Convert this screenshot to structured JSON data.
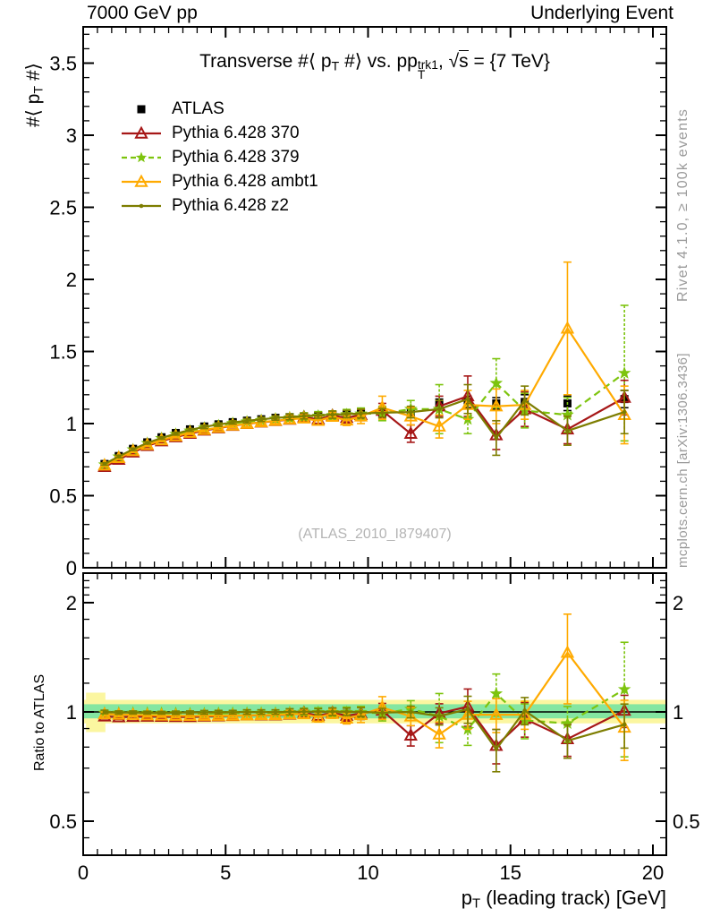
{
  "header": {
    "left": "7000 GeV pp",
    "right": "Underlying Event"
  },
  "side_notes": {
    "rivet": "Rivet 4.1.0, ≥ 100k events",
    "mcplots": "mcplots.cern.ch [arXiv:1306.3436]"
  },
  "watermark": "(ATLAS_2010_I879407)",
  "ratio_label": "Ratio to ATLAS",
  "chart_data": {
    "type": "line",
    "title_rich": [
      {
        "t": "Transverse #⟨ p"
      },
      {
        "t": "T",
        "m": "sub"
      },
      {
        "t": " #⟩ vs. p"
      },
      {
        "m": "stack",
        "sup": "trk1",
        "sub": "T",
        "t": "p"
      },
      {
        "t": ", "
      },
      {
        "t": "√"
      },
      {
        "t": "s",
        "m": "ov"
      },
      {
        "t": " = {7 TeV}"
      }
    ],
    "ylabel_rich": [
      {
        "t": "#⟨ p"
      },
      {
        "t": "T",
        "m": "sub"
      },
      {
        "t": " #⟩"
      }
    ],
    "xlabel_rich": [
      {
        "t": "p"
      },
      {
        "t": "T",
        "m": "sub"
      },
      {
        "t": " (leading track) [GeV]"
      }
    ],
    "x_axis": {
      "min": 0,
      "max": 20.47,
      "majors": [
        0,
        5,
        10,
        15,
        20
      ],
      "minor_step": 0.5
    },
    "y_main": {
      "min": 0,
      "max": 3.75,
      "majors": [
        0,
        0.5,
        1,
        1.5,
        2,
        2.5,
        3,
        3.5
      ],
      "minor_step": 0.1
    },
    "y_ratio": {
      "scale": "log",
      "min": 0.4,
      "max": 2.41,
      "majors": [
        0.5,
        1,
        2
      ],
      "minors": [
        0.4,
        0.45,
        0.6,
        0.7,
        0.8,
        0.9,
        1.2,
        1.4,
        1.6,
        1.8,
        2.1,
        2.2,
        2.3
      ]
    },
    "bands": {
      "green": [
        0.96,
        1.05
      ],
      "yellow": [
        0.93,
        1.08
      ],
      "first_bin": {
        "x": [
          0.1,
          0.78
        ],
        "range": [
          0.88,
          1.13
        ]
      },
      "colors": {
        "green": "#84e6a1",
        "yellow": "#fbf6a0"
      }
    },
    "x": [
      0.75,
      1.25,
      1.75,
      2.25,
      2.75,
      3.25,
      3.75,
      4.25,
      4.75,
      5.25,
      5.75,
      6.25,
      6.75,
      7.25,
      7.75,
      8.25,
      8.75,
      9.25,
      9.75,
      10.5,
      11.5,
      12.5,
      13.5,
      14.5,
      15.5,
      17,
      19
    ],
    "series": [
      {
        "name": "ATLAS",
        "marker": "square",
        "line": "none",
        "color": "#000000",
        "values": [
          0.72,
          0.775,
          0.825,
          0.87,
          0.905,
          0.935,
          0.96,
          0.98,
          0.995,
          1.01,
          1.02,
          1.03,
          1.04,
          1.045,
          1.05,
          1.055,
          1.06,
          1.065,
          1.07,
          1.08,
          1.08,
          1.13,
          1.15,
          1.14,
          1.15,
          1.14,
          1.17
        ],
        "errors": [
          0.02,
          0.015,
          0.015,
          0.015,
          0.015,
          0.015,
          0.015,
          0.015,
          0.015,
          0.015,
          0.015,
          0.015,
          0.02,
          0.02,
          0.02,
          0.02,
          0.02,
          0.025,
          0.025,
          0.03,
          0.03,
          0.04,
          0.04,
          0.04,
          0.05,
          0.05,
          0.06
        ]
      },
      {
        "name": "Pythia 6.428 370",
        "marker": "triangle-open",
        "line": "solid",
        "color": "#a61717",
        "values": [
          0.7,
          0.75,
          0.8,
          0.845,
          0.878,
          0.906,
          0.93,
          0.952,
          0.968,
          0.985,
          0.998,
          1.008,
          1.018,
          1.028,
          1.045,
          1.03,
          1.055,
          1.04,
          1.06,
          1.09,
          0.93,
          1.12,
          1.19,
          0.92,
          1.1,
          0.96,
          1.18
        ],
        "errors": [
          0.01,
          0.01,
          0.01,
          0.01,
          0.01,
          0.012,
          0.012,
          0.015,
          0.015,
          0.015,
          0.02,
          0.02,
          0.02,
          0.025,
          0.025,
          0.03,
          0.03,
          0.035,
          0.04,
          0.05,
          0.06,
          0.07,
          0.14,
          0.1,
          0.12,
          0.1,
          0.12
        ]
      },
      {
        "name": "Pythia 6.428 379",
        "marker": "star",
        "line": "dashed",
        "color": "#7dc40e",
        "values": [
          0.715,
          0.77,
          0.82,
          0.864,
          0.898,
          0.927,
          0.95,
          0.97,
          0.987,
          1.002,
          1.013,
          1.023,
          1.033,
          1.042,
          1.05,
          1.053,
          1.058,
          1.063,
          1.068,
          1.07,
          1.1,
          1.1,
          1.03,
          1.28,
          1.09,
          1.06,
          1.35
        ],
        "errors": [
          0.01,
          0.01,
          0.01,
          0.01,
          0.01,
          0.012,
          0.012,
          0.015,
          0.015,
          0.015,
          0.02,
          0.02,
          0.02,
          0.025,
          0.025,
          0.03,
          0.03,
          0.035,
          0.04,
          0.05,
          0.06,
          0.17,
          0.1,
          0.17,
          0.12,
          0.12,
          0.47
        ]
      },
      {
        "name": "Pythia 6.428 ambt1",
        "marker": "triangle-open",
        "line": "solid",
        "color": "#ffaa00",
        "values": [
          0.71,
          0.762,
          0.81,
          0.852,
          0.885,
          0.913,
          0.937,
          0.957,
          0.972,
          0.987,
          0.999,
          1.01,
          1.02,
          1.03,
          1.036,
          1.02,
          1.048,
          1.022,
          1.05,
          1.11,
          1.05,
          0.98,
          1.13,
          1.12,
          1.13,
          1.66,
          1.06
        ],
        "errors": [
          0.01,
          0.01,
          0.01,
          0.01,
          0.01,
          0.012,
          0.012,
          0.015,
          0.015,
          0.015,
          0.02,
          0.02,
          0.02,
          0.025,
          0.025,
          0.03,
          0.03,
          0.035,
          0.05,
          0.08,
          0.06,
          0.08,
          0.1,
          0.12,
          0.1,
          0.46,
          0.2
        ]
      },
      {
        "name": "Pythia 6.428 z2",
        "marker": "dot",
        "line": "solid",
        "color": "#7d7d00",
        "values": [
          0.72,
          0.772,
          0.822,
          0.866,
          0.9,
          0.93,
          0.956,
          0.977,
          0.993,
          1.008,
          1.019,
          1.029,
          1.039,
          1.046,
          1.052,
          1.057,
          1.062,
          1.066,
          1.07,
          1.075,
          1.08,
          1.1,
          1.17,
          0.9,
          1.16,
          0.95,
          1.08
        ],
        "errors": [
          0.008,
          0.008,
          0.008,
          0.008,
          0.008,
          0.01,
          0.01,
          0.012,
          0.012,
          0.012,
          0.015,
          0.015,
          0.015,
          0.02,
          0.02,
          0.02,
          0.025,
          0.025,
          0.03,
          0.03,
          0.04,
          0.06,
          0.1,
          0.12,
          0.1,
          0.1,
          0.15
        ]
      }
    ]
  }
}
